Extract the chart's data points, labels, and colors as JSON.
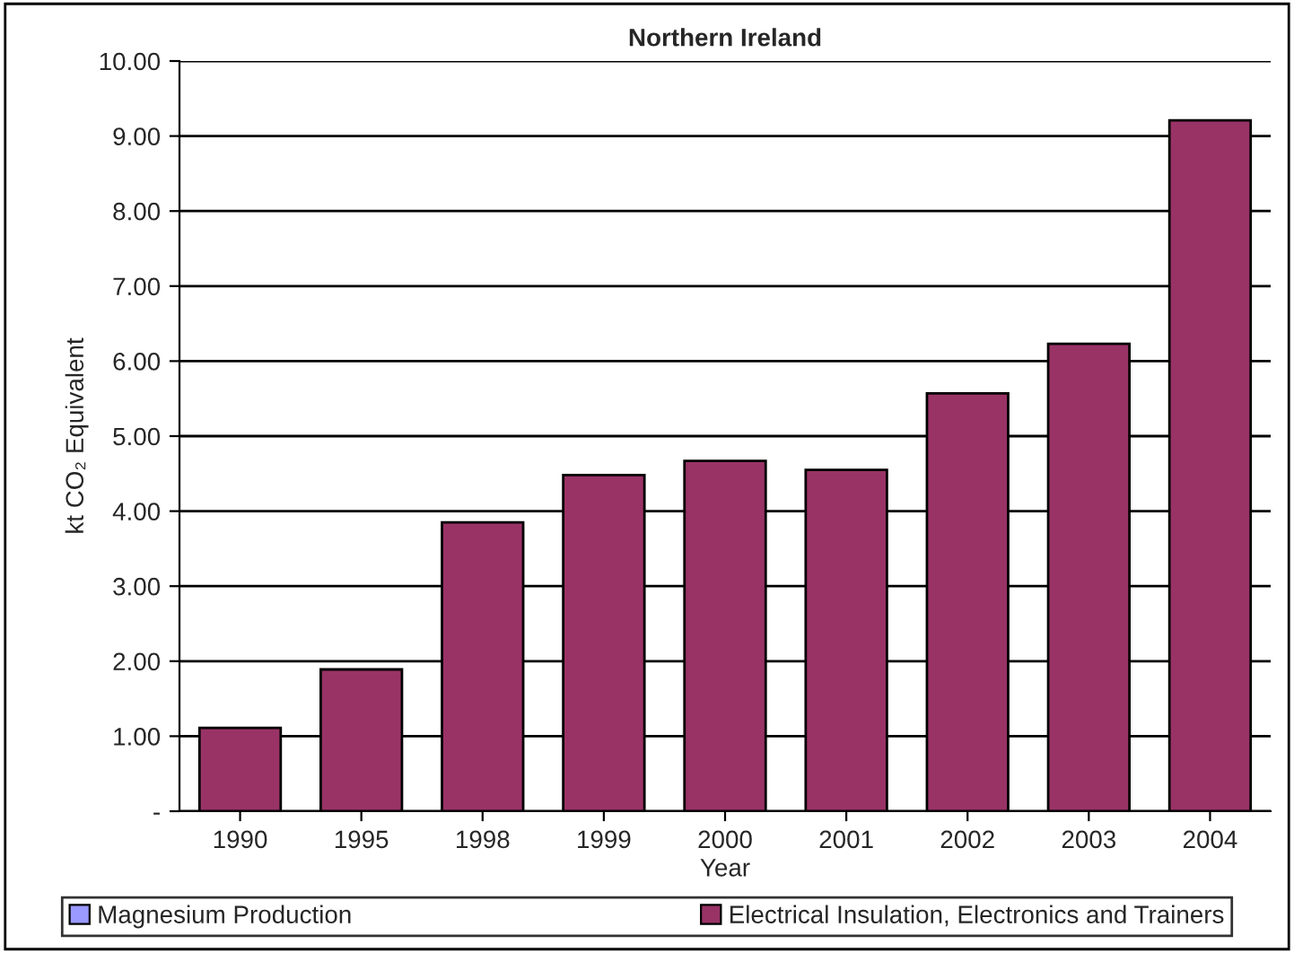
{
  "chart_data": {
    "type": "bar",
    "title": "Northern Ireland",
    "xlabel": "Year",
    "ylabel": "kt CO₂ Equivalent",
    "categories": [
      "1990",
      "1995",
      "1998",
      "1999",
      "2000",
      "2001",
      "2002",
      "2003",
      "2004"
    ],
    "series": [
      {
        "name": "Magnesium Production",
        "color": "#9999ff",
        "values": [
          0,
          0,
          0,
          0,
          0,
          0,
          0,
          0,
          0
        ]
      },
      {
        "name": "Electrical Insulation, Electronics and Trainers",
        "color": "#993366",
        "values": [
          1.11,
          1.89,
          3.85,
          4.48,
          4.67,
          4.55,
          5.57,
          6.23,
          9.21
        ]
      }
    ],
    "stacked": true,
    "ylim": [
      0,
      10
    ],
    "yticks": [
      {
        "value": 0,
        "label": "-"
      },
      {
        "value": 1,
        "label": "1.00"
      },
      {
        "value": 2,
        "label": "2.00"
      },
      {
        "value": 3,
        "label": "3.00"
      },
      {
        "value": 4,
        "label": "4.00"
      },
      {
        "value": 5,
        "label": "5.00"
      },
      {
        "value": 6,
        "label": "6.00"
      },
      {
        "value": 7,
        "label": "7.00"
      },
      {
        "value": 8,
        "label": "8.00"
      },
      {
        "value": 9,
        "label": "9.00"
      },
      {
        "value": 10,
        "label": "10.00"
      }
    ],
    "grid": "y",
    "legend": "bottom"
  }
}
